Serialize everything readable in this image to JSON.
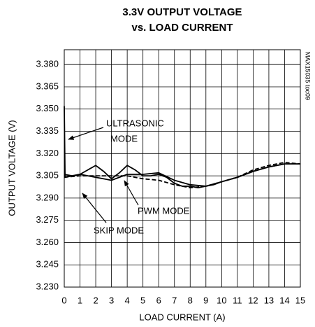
{
  "chart_data": {
    "type": "line",
    "title": [
      "3.3V OUTPUT VOLTAGE",
      "vs. LOAD CURRENT"
    ],
    "xlabel": "LOAD CURRENT (A)",
    "ylabel": "OUTPUT VOLTAGE (V)",
    "side_note": "MAX15035 toc09",
    "xlim": [
      0,
      15
    ],
    "xticks": [
      0,
      1,
      2,
      3,
      4,
      5,
      6,
      7,
      8,
      9,
      10,
      11,
      12,
      13,
      14,
      15
    ],
    "ylim": [
      3.23,
      3.39
    ],
    "yticks": [
      {
        "value": 3.23,
        "label": "3.230"
      },
      {
        "value": 3.245,
        "label": "3.245"
      },
      {
        "value": 3.26,
        "label": "3.260"
      },
      {
        "value": 3.275,
        "label": "3.275"
      },
      {
        "value": 3.29,
        "label": "3.290"
      },
      {
        "value": 3.305,
        "label": "3.305"
      },
      {
        "value": 3.32,
        "label": "3.320"
      },
      {
        "value": 3.335,
        "label": "3.335"
      },
      {
        "value": 3.35,
        "label": "3.350"
      },
      {
        "value": 3.365,
        "label": "3.365"
      },
      {
        "value": 3.38,
        "label": "3.380"
      }
    ],
    "grid": true,
    "series": [
      {
        "color": "#000000",
        "dash": false,
        "x": [
          0,
          0.5,
          1,
          1.5,
          2,
          2.5,
          3,
          3.5,
          4,
          4.5,
          5,
          5.5,
          6,
          6.5,
          7,
          7.5,
          8,
          8.5,
          9,
          9.5,
          10,
          11,
          12,
          13,
          14,
          15
        ],
        "values": [
          3.306,
          3.305,
          3.306,
          3.309,
          3.312,
          3.308,
          3.303,
          3.307,
          3.312,
          3.309,
          3.305,
          3.305,
          3.306,
          3.304,
          3.3,
          3.298,
          3.298,
          3.297,
          3.298,
          3.299,
          3.301,
          3.304,
          3.308,
          3.311,
          3.313,
          3.313
        ]
      },
      {
        "color": "#000000",
        "dash": false,
        "x": [
          0,
          0.05,
          1,
          2,
          3,
          4,
          5,
          6,
          7,
          8,
          9,
          10,
          11,
          12,
          13,
          14,
          15
        ],
        "values": [
          3.352,
          3.304,
          3.306,
          3.304,
          3.302,
          3.306,
          3.306,
          3.307,
          3.302,
          3.299,
          3.298,
          3.301,
          3.304,
          3.308,
          3.311,
          3.313,
          3.313
        ]
      },
      {
        "color": "#000000",
        "dash": true,
        "x": [
          0,
          1,
          2,
          3,
          4,
          5,
          6,
          7,
          8,
          9,
          10,
          11,
          12,
          13,
          14,
          15
        ],
        "values": [
          3.304,
          3.305,
          3.305,
          3.305,
          3.305,
          3.303,
          3.302,
          3.299,
          3.297,
          3.298,
          3.301,
          3.304,
          3.309,
          3.312,
          3.314,
          3.313
        ]
      }
    ],
    "annotations": [
      "ULTRASONIC",
      "MODE",
      "PWM MODE",
      "SKIP MODE"
    ]
  }
}
